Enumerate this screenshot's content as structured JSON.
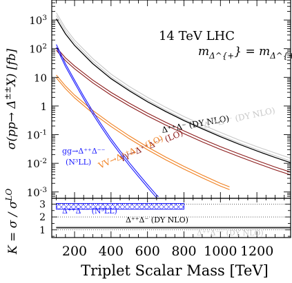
{
  "chart_data": {
    "type": "line",
    "xlabel": "Triplet Scalar Mass [TeV]",
    "x_ticks": [
      "200",
      "400",
      "600",
      "800",
      "1000",
      "1200"
    ],
    "xlim": [
      75,
      1385
    ],
    "top_panel": {
      "ylabel": "σ(pp→ Δ^{±±}X) [fb]",
      "y_scale": "log",
      "ylim": [
        0.0006,
        5000
      ],
      "y_ticks": [
        "10^{-3}",
        "10^{-2}",
        "10^{-1}",
        "1",
        "10",
        "10^{2}",
        "10^{3}"
      ],
      "header_line1": "14 TeV LHC",
      "header_line2": "m_{Δ^{+}} = m_{Δ^{++}}",
      "series": [
        {
          "name": "Δ^{++}Δ^{--} (DY NLO)",
          "color": "#c8c8c8",
          "band": true,
          "x": [
            100,
            150,
            200,
            300,
            400,
            500,
            600,
            700,
            800,
            900,
            1000,
            1100,
            1200,
            1300,
            1385
          ],
          "y": [
            1800,
            520,
            200,
            45,
            13,
            4.8,
            2.0,
            0.9,
            0.43,
            0.22,
            0.12,
            0.066,
            0.038,
            0.023,
            0.015
          ]
        },
        {
          "name": "Δ^{++}Δ^{-} (DY NLO)",
          "color": "#000000",
          "band": false,
          "x": [
            100,
            150,
            200,
            300,
            400,
            500,
            600,
            700,
            800,
            900,
            1000,
            1100,
            1200,
            1300,
            1385
          ],
          "y": [
            1100,
            330,
            130,
            30,
            9.0,
            3.4,
            1.4,
            0.64,
            0.31,
            0.16,
            0.085,
            0.047,
            0.027,
            0.016,
            0.0105
          ]
        },
        {
          "name": "γγ→Δ^{++}Δ^{--} (LO)",
          "color": "#8b1a1a",
          "band": true,
          "x": [
            100,
            150,
            200,
            300,
            400,
            500,
            600,
            700,
            800,
            900,
            1000,
            1100,
            1200,
            1300,
            1385
          ],
          "y": [
            110,
            48,
            25,
            8.0,
            3.0,
            1.25,
            0.56,
            0.27,
            0.135,
            0.07,
            0.038,
            0.0215,
            0.0125,
            0.0074,
            0.0049
          ]
        },
        {
          "name": "VV→Δ^{++}Δ^{--} (LO)",
          "color": "#f07f1e",
          "band": true,
          "x": [
            100,
            150,
            200,
            300,
            400,
            500,
            600,
            700,
            800,
            900,
            1000,
            1050
          ],
          "y": [
            12,
            5.0,
            2.4,
            0.7,
            0.24,
            0.09,
            0.037,
            0.0165,
            0.0078,
            0.0039,
            0.002,
            0.0015
          ]
        },
        {
          "name": "gg→Δ^{++}Δ^{--} (N^{3}LL)",
          "color": "#1a1aff",
          "band": true,
          "x": [
            100,
            150,
            200,
            250,
            300,
            350,
            400,
            450,
            500,
            550,
            600,
            650,
            660
          ],
          "y": [
            140,
            30,
            8.0,
            2.2,
            0.65,
            0.21,
            0.072,
            0.027,
            0.0105,
            0.0043,
            0.0018,
            0.00078,
            0.00068
          ]
        }
      ],
      "labels": [
        {
          "text_main": "Δ⁺⁺Δ⁻ (DY NLO)",
          "color": "#000000"
        },
        {
          "text_main": "γγ→Δ⁺⁺Δ⁻⁻ (LO)",
          "color": "#8b1a1a"
        },
        {
          "text_main": "VV→Δ⁺⁺Δ⁻⁻ (LO)",
          "color": "#f07f1e"
        },
        {
          "text_main": "gg→Δ⁺⁺Δ⁻⁻",
          "text_sub": "(N³LL)",
          "color": "#1a1aff"
        },
        {
          "text_main": "Δ⁺⁺Δ⁻⁻ (DY NLO)",
          "color": "#c8c8c8"
        }
      ]
    },
    "bottom_panel": {
      "ylabel": "K = σ / σ^{LO}",
      "y_scale": "linear",
      "ylim": [
        0.4,
        3.45
      ],
      "y_ticks": [
        "1",
        "2",
        "3"
      ],
      "bands": [
        {
          "name": "Δ⁺⁺Δ⁻⁻ (N³LL)",
          "color": "#1a1aff",
          "x": [
            100,
            800
          ],
          "y_low": 2.6,
          "y_high": 3.05,
          "hatched": true
        },
        {
          "name": "Δ⁺⁺Δ⁻ (DY NLO)",
          "color": "#000000",
          "x": [
            100,
            1385
          ],
          "y_low": 1.18,
          "y_high": 1.2,
          "hatched": false
        },
        {
          "name": "Δ⁺⁺Δ⁻⁻ (DY NLO)",
          "color": "#c8c8c8",
          "x": [
            100,
            1385
          ],
          "y_low": 1.23,
          "y_high": 1.27,
          "hatched": false
        }
      ]
    }
  }
}
